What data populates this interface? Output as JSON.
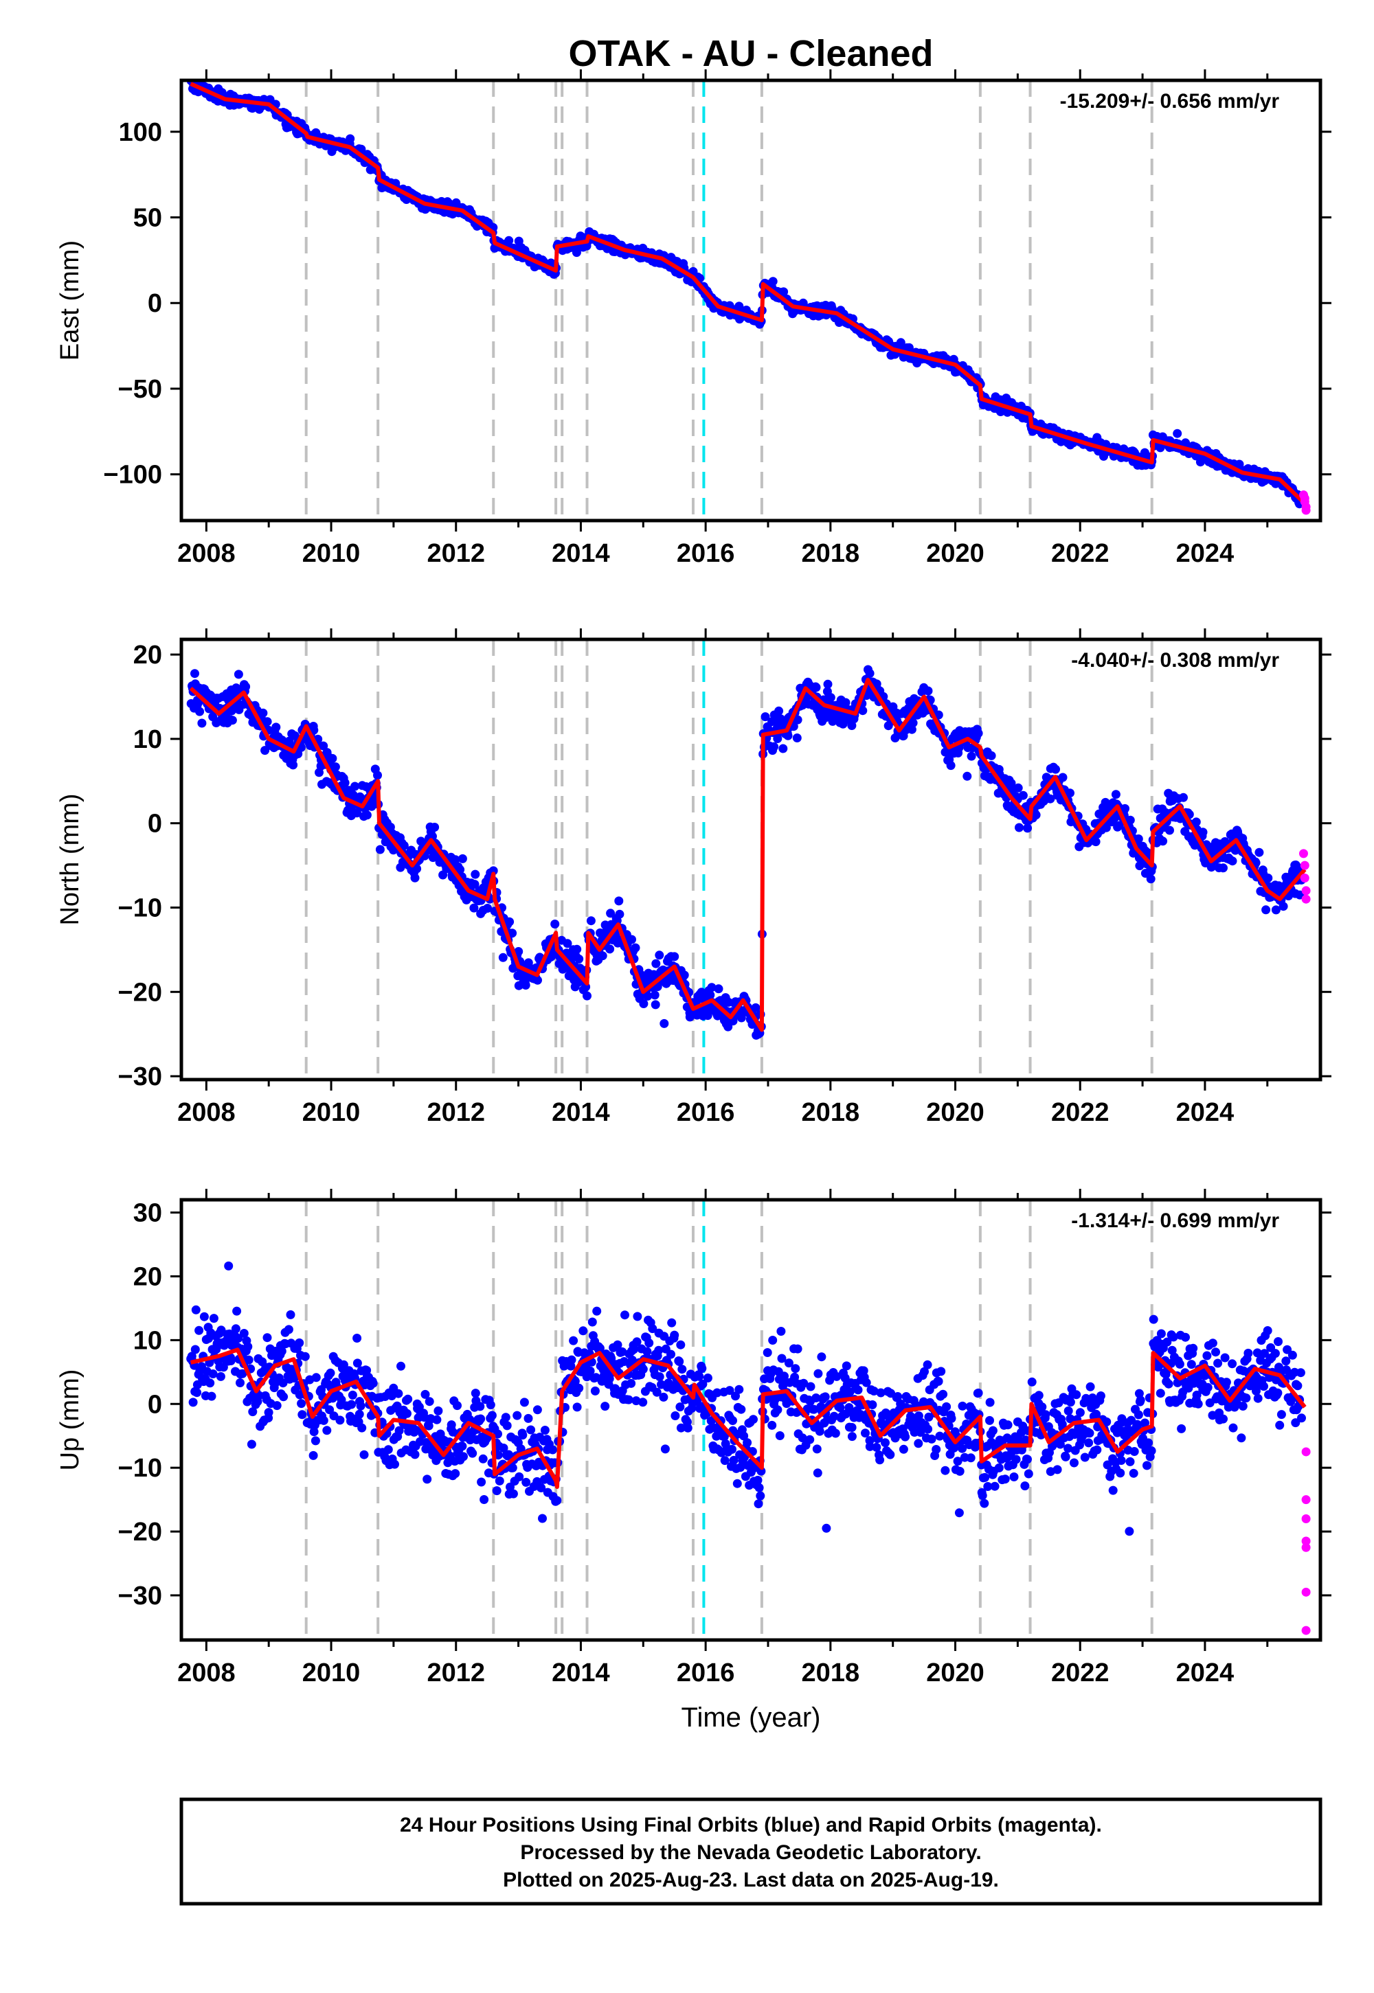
{
  "chart_data": {
    "type": "scatter",
    "title": "OTAK  - AU - Cleaned",
    "xlabel": "Time (year)",
    "xlim": [
      2007.6,
      2025.85
    ],
    "x_ticks": [
      "2008",
      "2010",
      "2012",
      "2014",
      "2016",
      "2018",
      "2020",
      "2022",
      "2024"
    ],
    "vertical_lines": {
      "gray_dashed": [
        2009.6,
        2010.75,
        2012.6,
        2013.6,
        2013.7,
        2014.1,
        2015.8,
        2016.9,
        2020.4,
        2021.2,
        2023.15
      ],
      "cyan_dashed": [
        2015.97
      ]
    },
    "colors": {
      "final": "#0000ff",
      "rapid": "#ff00ff",
      "model": "#ff0000",
      "gray": "#c0c0c0",
      "cyan": "#00e5ee"
    },
    "panels": [
      {
        "name": "East",
        "ylabel": "East (mm)",
        "ylim": [
          -127,
          130
        ],
        "y_ticks": [
          "100",
          "50",
          "0",
          "−50",
          "−100"
        ],
        "y_tick_values": [
          100,
          50,
          0,
          -50,
          -100
        ],
        "rate": "-15.209+/- 0.656 mm/yr",
        "model": [
          [
            2007.75,
            128
          ],
          [
            2008.3,
            119
          ],
          [
            2009,
            116
          ],
          [
            2009.6,
            99
          ],
          [
            2009.62,
            97
          ],
          [
            2010.3,
            91
          ],
          [
            2010.75,
            79
          ],
          [
            2010.77,
            72
          ],
          [
            2011.5,
            58
          ],
          [
            2012.1,
            54
          ],
          [
            2012.6,
            41
          ],
          [
            2012.62,
            35
          ],
          [
            2013.6,
            19
          ],
          [
            2013.62,
            33
          ],
          [
            2014.1,
            36
          ],
          [
            2014.12,
            39
          ],
          [
            2014.7,
            31
          ],
          [
            2015.3,
            26
          ],
          [
            2015.8,
            15
          ],
          [
            2016.2,
            -2
          ],
          [
            2016.9,
            -10
          ],
          [
            2016.92,
            11
          ],
          [
            2017.4,
            -2
          ],
          [
            2018.1,
            -6
          ],
          [
            2019,
            -27
          ],
          [
            2020,
            -36
          ],
          [
            2020.4,
            -48
          ],
          [
            2020.42,
            -56
          ],
          [
            2021.2,
            -65
          ],
          [
            2021.22,
            -72
          ],
          [
            2022.1,
            -82
          ],
          [
            2023.15,
            -93
          ],
          [
            2023.17,
            -80
          ],
          [
            2024,
            -88
          ],
          [
            2024.6,
            -99
          ],
          [
            2025.2,
            -103
          ],
          [
            2025.6,
            -117
          ]
        ],
        "rapid": [
          [
            2025.58,
            -112
          ],
          [
            2025.6,
            -114
          ],
          [
            2025.6,
            -116
          ],
          [
            2025.62,
            -119
          ],
          [
            2025.62,
            -121
          ]
        ],
        "scatter_spread": 2.5
      },
      {
        "name": "North",
        "ylabel": "North (mm)",
        "ylim": [
          -30.4,
          21.8
        ],
        "y_ticks": [
          "20",
          "10",
          "0",
          "−10",
          "−20",
          "−30"
        ],
        "y_tick_values": [
          20,
          10,
          0,
          -10,
          -20,
          -30
        ],
        "rate": "-4.040+/- 0.308 mm/yr",
        "model": [
          [
            2007.75,
            16
          ],
          [
            2008.2,
            13
          ],
          [
            2008.6,
            15.5
          ],
          [
            2009,
            10
          ],
          [
            2009.4,
            8.5
          ],
          [
            2009.6,
            11.5
          ],
          [
            2010.2,
            3
          ],
          [
            2010.5,
            2
          ],
          [
            2010.75,
            5
          ],
          [
            2010.77,
            0
          ],
          [
            2011.3,
            -5
          ],
          [
            2011.6,
            -2
          ],
          [
            2012.2,
            -8
          ],
          [
            2012.5,
            -9
          ],
          [
            2012.6,
            -6
          ],
          [
            2012.62,
            -9
          ],
          [
            2013,
            -17
          ],
          [
            2013.3,
            -18
          ],
          [
            2013.6,
            -13
          ],
          [
            2013.62,
            -15
          ],
          [
            2014.1,
            -19
          ],
          [
            2014.12,
            -13
          ],
          [
            2014.3,
            -15
          ],
          [
            2014.6,
            -12
          ],
          [
            2015,
            -20
          ],
          [
            2015.5,
            -17
          ],
          [
            2015.8,
            -22
          ],
          [
            2016.1,
            -21
          ],
          [
            2016.4,
            -23
          ],
          [
            2016.6,
            -21
          ],
          [
            2016.9,
            -24.5
          ],
          [
            2016.92,
            10.5
          ],
          [
            2017.3,
            11
          ],
          [
            2017.6,
            16
          ],
          [
            2017.9,
            14
          ],
          [
            2018.4,
            13
          ],
          [
            2018.6,
            17
          ],
          [
            2019.1,
            11
          ],
          [
            2019.5,
            15
          ],
          [
            2019.9,
            9
          ],
          [
            2020.2,
            10
          ],
          [
            2020.4,
            9
          ],
          [
            2020.42,
            8
          ],
          [
            2020.9,
            3
          ],
          [
            2021.2,
            0.5
          ],
          [
            2021.22,
            2
          ],
          [
            2021.6,
            5.5
          ],
          [
            2022.1,
            -2
          ],
          [
            2022.6,
            2
          ],
          [
            2022.9,
            -3
          ],
          [
            2023.15,
            -5
          ],
          [
            2023.17,
            -1
          ],
          [
            2023.6,
            2
          ],
          [
            2024.1,
            -4.5
          ],
          [
            2024.5,
            -2
          ],
          [
            2025,
            -8
          ],
          [
            2025.2,
            -9
          ],
          [
            2025.6,
            -5.5
          ]
        ],
        "rapid": [
          [
            2025.58,
            -3.6
          ],
          [
            2025.6,
            -5
          ],
          [
            2025.6,
            -6.5
          ],
          [
            2025.62,
            -8
          ],
          [
            2025.62,
            -9
          ]
        ],
        "scatter_spread": 1.4
      },
      {
        "name": "Up",
        "ylabel": "Up (mm)",
        "ylim": [
          -37,
          32
        ],
        "y_ticks": [
          "30",
          "20",
          "10",
          "0",
          "−10",
          "−20",
          "−30"
        ],
        "y_tick_values": [
          30,
          20,
          10,
          0,
          -10,
          -20,
          -30
        ],
        "rate": "-1.314+/- 0.699 mm/yr",
        "model": [
          [
            2007.75,
            6.5
          ],
          [
            2008.2,
            7.5
          ],
          [
            2008.5,
            8.5
          ],
          [
            2008.8,
            2
          ],
          [
            2009.1,
            6
          ],
          [
            2009.4,
            7
          ],
          [
            2009.6,
            1
          ],
          [
            2009.7,
            -2
          ],
          [
            2010,
            2
          ],
          [
            2010.4,
            3.5
          ],
          [
            2010.75,
            -2
          ],
          [
            2010.77,
            -5
          ],
          [
            2011,
            -2.5
          ],
          [
            2011.4,
            -3
          ],
          [
            2011.8,
            -8
          ],
          [
            2012.2,
            -3
          ],
          [
            2012.6,
            -5
          ],
          [
            2012.62,
            -11
          ],
          [
            2013,
            -8
          ],
          [
            2013.3,
            -7
          ],
          [
            2013.6,
            -12
          ],
          [
            2013.62,
            -13
          ],
          [
            2013.7,
            2
          ],
          [
            2014,
            6.5
          ],
          [
            2014.3,
            8
          ],
          [
            2014.6,
            4
          ],
          [
            2015,
            7
          ],
          [
            2015.4,
            6
          ],
          [
            2015.8,
            1
          ],
          [
            2015.82,
            3
          ],
          [
            2016.1,
            -1.5
          ],
          [
            2016.5,
            -6
          ],
          [
            2016.9,
            -10
          ],
          [
            2016.92,
            1.5
          ],
          [
            2017.3,
            2
          ],
          [
            2017.7,
            -3
          ],
          [
            2018.1,
            0.5
          ],
          [
            2018.5,
            1
          ],
          [
            2018.8,
            -5
          ],
          [
            2019.2,
            -1
          ],
          [
            2019.6,
            -0.5
          ],
          [
            2020,
            -6
          ],
          [
            2020.4,
            -2
          ],
          [
            2020.42,
            -9
          ],
          [
            2020.8,
            -6.5
          ],
          [
            2021.2,
            -6.5
          ],
          [
            2021.22,
            0
          ],
          [
            2021.5,
            -6
          ],
          [
            2021.9,
            -3
          ],
          [
            2022.3,
            -2.5
          ],
          [
            2022.6,
            -7.5
          ],
          [
            2023,
            -4
          ],
          [
            2023.15,
            -3.5
          ],
          [
            2023.17,
            8
          ],
          [
            2023.6,
            4
          ],
          [
            2024,
            6
          ],
          [
            2024.4,
            0.5
          ],
          [
            2024.8,
            5.5
          ],
          [
            2025.2,
            4.5
          ],
          [
            2025.6,
            -0.5
          ]
        ],
        "rapid": [
          [
            2025.62,
            -7.5
          ],
          [
            2025.62,
            -15
          ],
          [
            2025.62,
            -18
          ],
          [
            2025.62,
            -21.5
          ],
          [
            2025.62,
            -22.5
          ],
          [
            2025.62,
            -29.5
          ],
          [
            2025.62,
            -35.5
          ]
        ],
        "scatter_spread": 4.5
      }
    ]
  },
  "footer": {
    "line1": "24 Hour Positions Using Final Orbits (blue) and Rapid Orbits (magenta).",
    "line2": "Processed by the Nevada Geodetic Laboratory.",
    "line3": "Plotted on 2025-Aug-23. Last data on 2025-Aug-19."
  }
}
